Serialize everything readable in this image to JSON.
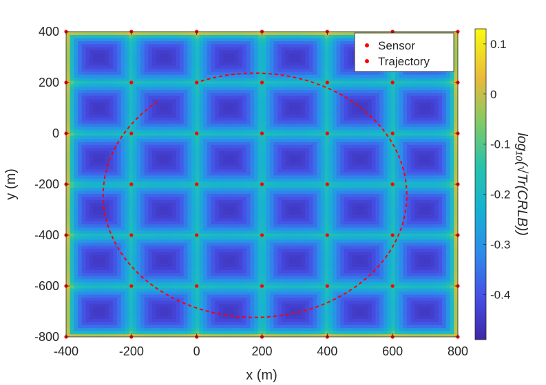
{
  "chart_data": {
    "type": "heatmap",
    "title": "",
    "xlabel": "x (m)",
    "ylabel": "y (m)",
    "xlim": [
      -400,
      800
    ],
    "ylim": [
      -800,
      400
    ],
    "xticks": [
      "-400",
      "-200",
      "0",
      "200",
      "400",
      "600",
      "800"
    ],
    "yticks": [
      "-800",
      "-600",
      "-400",
      "-200",
      "0",
      "200",
      "400"
    ],
    "xtick_values": [
      -400,
      -200,
      0,
      200,
      400,
      600,
      800
    ],
    "ytick_values": [
      -800,
      -600,
      -400,
      -200,
      0,
      200,
      400
    ],
    "colorbar": {
      "label": "log₁₀(√Tr(CRLB))",
      "range": [
        -0.49,
        0.13
      ],
      "ticks": [
        "0.1",
        "0",
        "-0.1",
        "-0.2",
        "-0.3",
        "-0.4"
      ],
      "tick_values": [
        0.1,
        0,
        -0.1,
        -0.2,
        -0.3,
        -0.4
      ],
      "colormap": "parula"
    },
    "heatmap_pattern": {
      "description": "periodic grid field; minima at cell centers between sensors, maxima along outer boundary",
      "cell_min_value": -0.45,
      "between_sensor_value": -0.2,
      "boundary_value": 0.1
    },
    "legend": {
      "position": "top-right",
      "entries": [
        {
          "label": "Sensor",
          "color": "#ff0000",
          "marker": "dot"
        },
        {
          "label": "Trajectory",
          "color": "#ff0000",
          "marker": "dot"
        }
      ]
    },
    "series": [
      {
        "name": "Sensor",
        "kind": "scatter",
        "color": "#ff0000",
        "x_values": [
          -400,
          -200,
          0,
          200,
          400,
          600,
          800
        ],
        "y_values": [
          -800,
          -600,
          -400,
          -200,
          0,
          200,
          400
        ]
      },
      {
        "name": "Trajectory",
        "kind": "dashed-line",
        "color": "#ff0000",
        "shape": "ellipse arc",
        "center": [
          220,
          -200
        ],
        "radius_x": 465,
        "radius_y": 480,
        "start": [
          -120,
          125
        ],
        "end": [
          0,
          200
        ]
      }
    ]
  }
}
